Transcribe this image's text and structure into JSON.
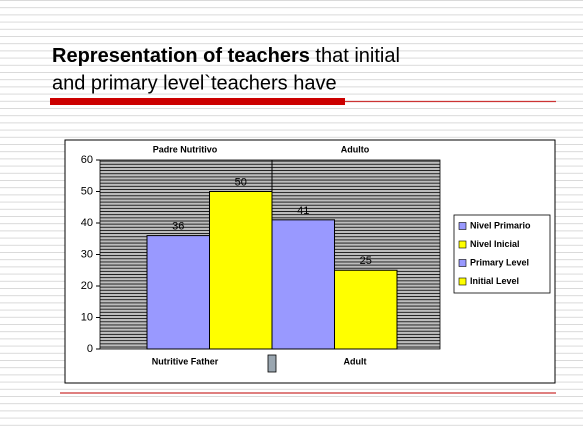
{
  "title_bold": "Representation of teachers",
  "title_rest": " that initial",
  "title_line2": "and primary level`teachers have",
  "chart_data": {
    "type": "bar",
    "top_categories": [
      "Padre Nutritivo",
      "Adulto"
    ],
    "categories": [
      "Nutritive Father",
      "Adult"
    ],
    "series": [
      {
        "name": "Nivel Primario",
        "color": "#9999ff",
        "values": [
          36,
          41
        ]
      },
      {
        "name": "Nivel Inicial",
        "color": "#ffff00",
        "values": [
          50,
          25
        ]
      }
    ],
    "legend_extra": [
      {
        "name": "Primary Level",
        "color": "#9999ff"
      },
      {
        "name": "Initial Level",
        "color": "#ffff00"
      }
    ],
    "ylim": [
      0,
      60
    ],
    "yticks": [
      0,
      10,
      20,
      30,
      40,
      50,
      60
    ],
    "legend": "right"
  }
}
